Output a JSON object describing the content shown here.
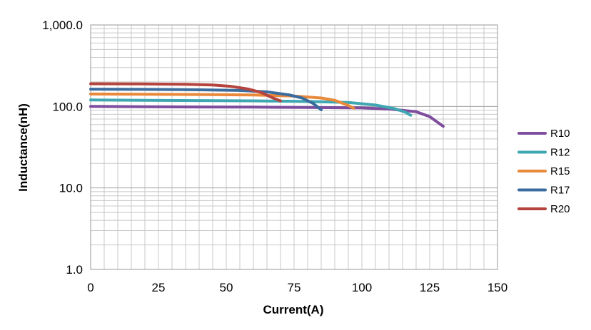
{
  "chart_data": {
    "type": "line",
    "title": "",
    "xlabel": "Current(A)",
    "ylabel": "Inductance(nH)",
    "xlim": [
      0,
      150
    ],
    "ylim": [
      1,
      1000
    ],
    "yscale": "log",
    "grid": true,
    "legend_position": "right",
    "x_ticks": [
      0,
      25,
      50,
      75,
      100,
      125,
      150
    ],
    "x_tick_labels": [
      "0",
      "25",
      "50",
      "75",
      "100",
      "125",
      "150"
    ],
    "y_ticks": [
      1,
      10,
      100,
      1000
    ],
    "y_tick_labels": [
      "1.0",
      "10.0",
      "100.0",
      "1,000.0"
    ],
    "series": [
      {
        "name": "R10",
        "color": "#7E4D9E",
        "points": [
          [
            0,
            100
          ],
          [
            20,
            99
          ],
          [
            40,
            98.5
          ],
          [
            60,
            98
          ],
          [
            80,
            97
          ],
          [
            100,
            96
          ],
          [
            110,
            93
          ],
          [
            120,
            86
          ],
          [
            125,
            75
          ],
          [
            130,
            57
          ]
        ]
      },
      {
        "name": "R12",
        "color": "#3FA7B2",
        "points": [
          [
            0,
            120
          ],
          [
            20,
            119
          ],
          [
            40,
            118
          ],
          [
            60,
            117
          ],
          [
            80,
            115
          ],
          [
            95,
            112
          ],
          [
            105,
            104
          ],
          [
            112,
            94
          ],
          [
            116,
            85
          ],
          [
            118,
            78
          ]
        ]
      },
      {
        "name": "R15",
        "color": "#E9893A",
        "points": [
          [
            0,
            142
          ],
          [
            20,
            141
          ],
          [
            40,
            140
          ],
          [
            60,
            138
          ],
          [
            75,
            134
          ],
          [
            85,
            127
          ],
          [
            90,
            119
          ],
          [
            95,
            103
          ],
          [
            97,
            95
          ]
        ]
      },
      {
        "name": "R17",
        "color": "#3A6C9E",
        "points": [
          [
            0,
            163
          ],
          [
            20,
            162
          ],
          [
            40,
            160
          ],
          [
            55,
            157
          ],
          [
            65,
            151
          ],
          [
            73,
            139
          ],
          [
            78,
            127
          ],
          [
            82,
            109
          ],
          [
            85,
            91
          ]
        ]
      },
      {
        "name": "R20",
        "color": "#B5443E",
        "points": [
          [
            0,
            190
          ],
          [
            20,
            189
          ],
          [
            35,
            187
          ],
          [
            45,
            183
          ],
          [
            52,
            176
          ],
          [
            58,
            164
          ],
          [
            63,
            148
          ],
          [
            67,
            128
          ],
          [
            70,
            117
          ]
        ]
      }
    ]
  }
}
